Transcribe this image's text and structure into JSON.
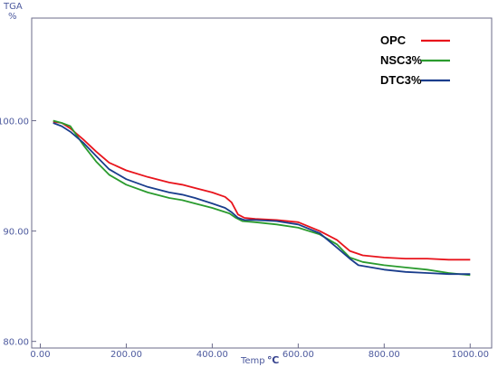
{
  "chart_data": {
    "type": "line",
    "xlabel": "Temp",
    "xunit": "℃",
    "ylabel_line1": "TGA",
    "ylabel_line2": "%",
    "xlim": [
      -20,
      1050
    ],
    "ylim": [
      79.4,
      109.3
    ],
    "xticks": [
      0,
      200,
      400,
      600,
      800,
      1000
    ],
    "xtick_labels": [
      "0.00",
      "200.00",
      "400.00",
      "600.00",
      "800.00",
      "1000.00"
    ],
    "yticks": [
      80,
      90,
      100
    ],
    "ytick_labels": [
      "80.00",
      "90.00",
      "100.00"
    ],
    "grid": false,
    "legend_position": "top-right",
    "series": [
      {
        "name": "OPC",
        "color": "#e8141c",
        "points": [
          [
            30,
            99.9
          ],
          [
            50,
            99.8
          ],
          [
            70,
            99.3
          ],
          [
            100,
            98.3
          ],
          [
            130,
            97.2
          ],
          [
            160,
            96.2
          ],
          [
            200,
            95.5
          ],
          [
            250,
            94.9
          ],
          [
            300,
            94.4
          ],
          [
            330,
            94.2
          ],
          [
            360,
            93.9
          ],
          [
            400,
            93.5
          ],
          [
            430,
            93.1
          ],
          [
            445,
            92.6
          ],
          [
            460,
            91.5
          ],
          [
            475,
            91.2
          ],
          [
            500,
            91.1
          ],
          [
            550,
            91.0
          ],
          [
            600,
            90.8
          ],
          [
            650,
            90.0
          ],
          [
            690,
            89.2
          ],
          [
            720,
            88.2
          ],
          [
            750,
            87.8
          ],
          [
            800,
            87.6
          ],
          [
            850,
            87.5
          ],
          [
            900,
            87.5
          ],
          [
            950,
            87.4
          ],
          [
            1000,
            87.4
          ]
        ]
      },
      {
        "name": "NSC3%",
        "color": "#2a9b2e",
        "points": [
          [
            30,
            100.0
          ],
          [
            50,
            99.8
          ],
          [
            70,
            99.5
          ],
          [
            100,
            97.8
          ],
          [
            130,
            96.3
          ],
          [
            160,
            95.1
          ],
          [
            200,
            94.2
          ],
          [
            250,
            93.5
          ],
          [
            300,
            93.0
          ],
          [
            330,
            92.8
          ],
          [
            360,
            92.5
          ],
          [
            400,
            92.1
          ],
          [
            440,
            91.6
          ],
          [
            455,
            91.2
          ],
          [
            470,
            90.9
          ],
          [
            500,
            90.8
          ],
          [
            550,
            90.6
          ],
          [
            600,
            90.3
          ],
          [
            650,
            89.7
          ],
          [
            690,
            88.8
          ],
          [
            720,
            87.6
          ],
          [
            750,
            87.2
          ],
          [
            800,
            86.9
          ],
          [
            850,
            86.7
          ],
          [
            900,
            86.5
          ],
          [
            950,
            86.2
          ],
          [
            1000,
            86.0
          ]
        ]
      },
      {
        "name": "DTC3%",
        "color": "#1a3d8c",
        "points": [
          [
            30,
            99.8
          ],
          [
            50,
            99.5
          ],
          [
            70,
            99.0
          ],
          [
            100,
            98.0
          ],
          [
            130,
            96.8
          ],
          [
            160,
            95.6
          ],
          [
            200,
            94.7
          ],
          [
            250,
            94.0
          ],
          [
            300,
            93.5
          ],
          [
            330,
            93.3
          ],
          [
            360,
            93.0
          ],
          [
            400,
            92.5
          ],
          [
            430,
            92.1
          ],
          [
            445,
            91.7
          ],
          [
            460,
            91.2
          ],
          [
            475,
            91.0
          ],
          [
            500,
            91.0
          ],
          [
            550,
            90.9
          ],
          [
            600,
            90.6
          ],
          [
            650,
            89.8
          ],
          [
            690,
            88.5
          ],
          [
            720,
            87.5
          ],
          [
            740,
            86.9
          ],
          [
            800,
            86.5
          ],
          [
            850,
            86.3
          ],
          [
            900,
            86.2
          ],
          [
            950,
            86.1
          ],
          [
            1000,
            86.1
          ]
        ]
      }
    ]
  }
}
